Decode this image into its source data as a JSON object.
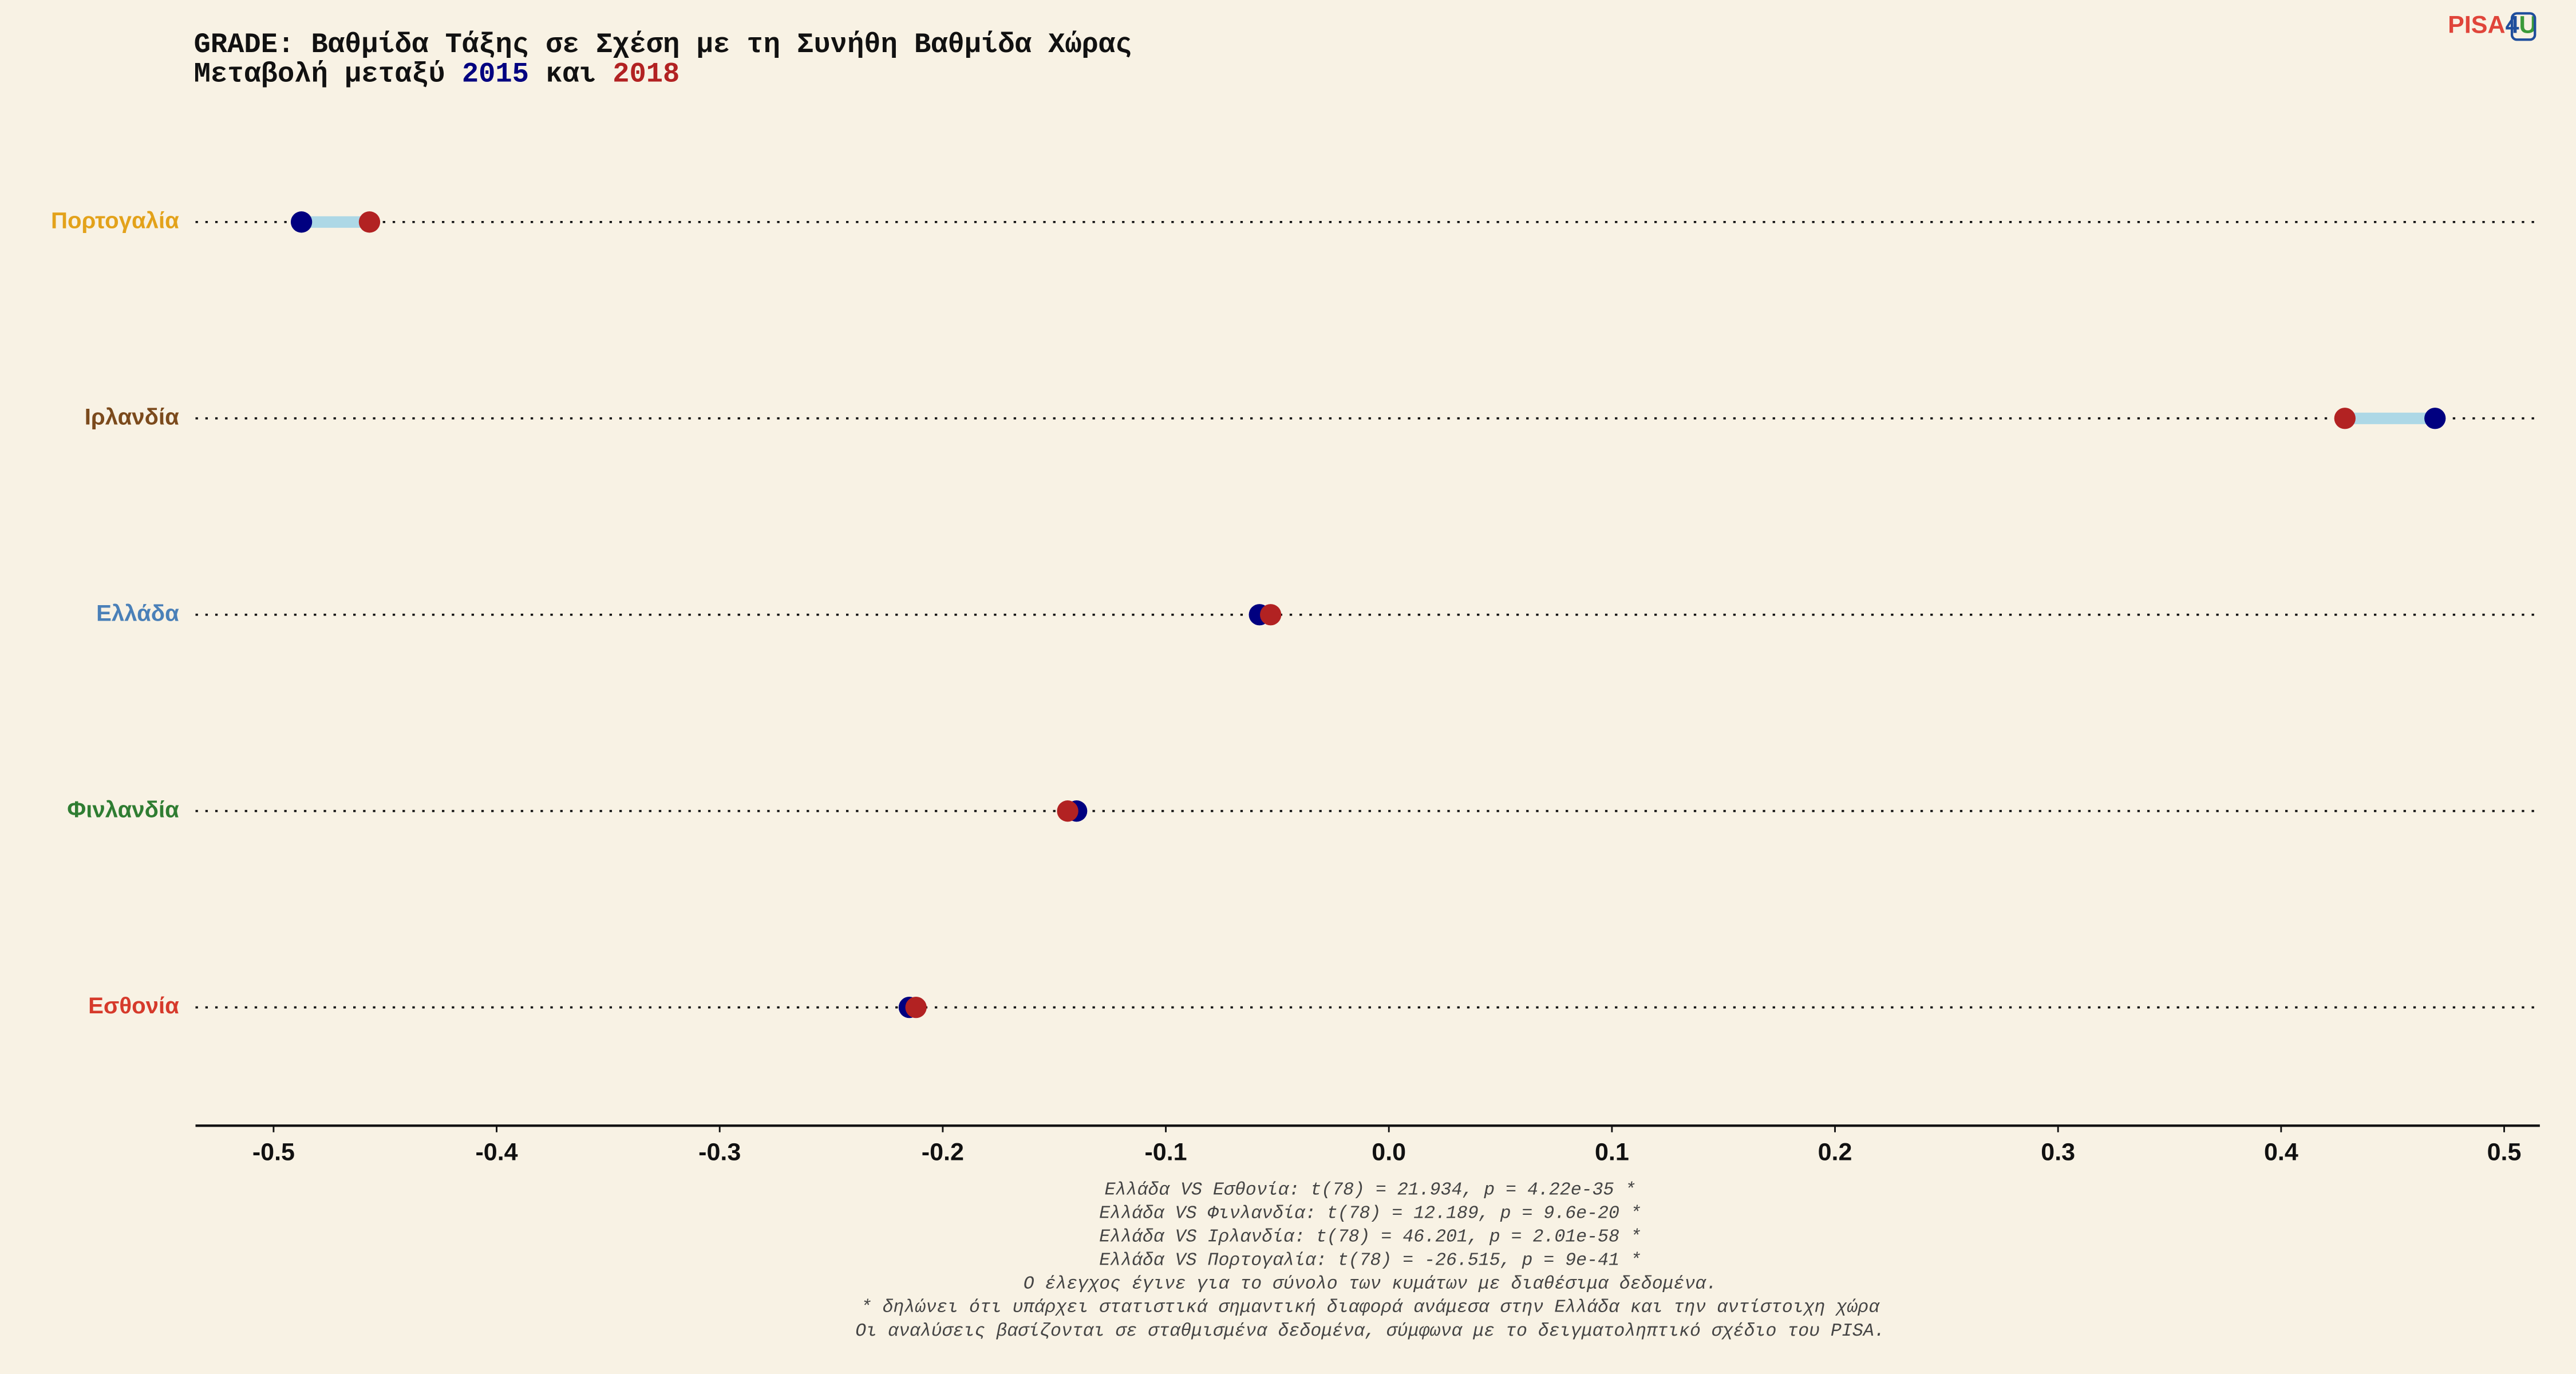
{
  "chart_data": {
    "type": "dumbbell",
    "title": "GRADE: Βαθμίδα Τάξης σε Σχέση με τη Συνήθη Βαθμίδα Χώρας",
    "subtitle_parts": [
      "Μεταβολή μεταξύ",
      "και"
    ],
    "categories": [
      "Πορτογαλία",
      "Ιρλανδία",
      "Ελλάδα",
      "Φινλανδία",
      "Εσθονία"
    ],
    "label_colors": [
      "#e3a21a",
      "#7b4a1c",
      "#4a80b8",
      "#2f7d32",
      "#d63a2b"
    ],
    "series": [
      {
        "name": "2015",
        "color": "#000080",
        "values": [
          -0.4875,
          0.469,
          -0.058,
          -0.14,
          -0.215
        ]
      },
      {
        "name": "2018",
        "color": "#b22222",
        "values": [
          -0.457,
          0.4286,
          -0.053,
          -0.144,
          -0.212
        ]
      }
    ],
    "connector_color": "#add8e6",
    "xlim": [
      -0.535,
      0.516
    ],
    "xticks": [
      -0.5,
      -0.4,
      -0.3,
      -0.2,
      -0.1,
      {
        "value": 0,
        "label": "0.0"
      },
      0.1,
      0.2,
      0.3,
      0.4,
      0.5
    ],
    "footnotes": [
      "Ελλάδα VS Εσθονία: t(78) = 21.934, p = 4.22e-35 *",
      "Ελλάδα VS Φινλανδία: t(78) = 12.189, p = 9.6e-20 *",
      "Ελλάδα VS Ιρλανδία: t(78) = 46.201, p = 2.01e-58 *",
      "Ελλάδα VS Πορτογαλία: t(78) = -26.515, p = 9e-41 *",
      "Ο έλεγχος έγινε για το σύνολο των κυμάτων με διαθέσιμα δεδομένα.",
      "* δηλώνει ότι υπάρχει στατιστικά σημαντική διαφορά ανάμεσα στην Ελλάδα και την αντίστοιχη χώρα",
      "Οι αναλύσεις βασίζονται σε σταθμισμένα δεδομένα, σύμφωνα με το δειγματοληπτικό σχέδιο του PISA."
    ]
  },
  "logo": {
    "parts": [
      "PISA",
      "4",
      "U"
    ]
  }
}
